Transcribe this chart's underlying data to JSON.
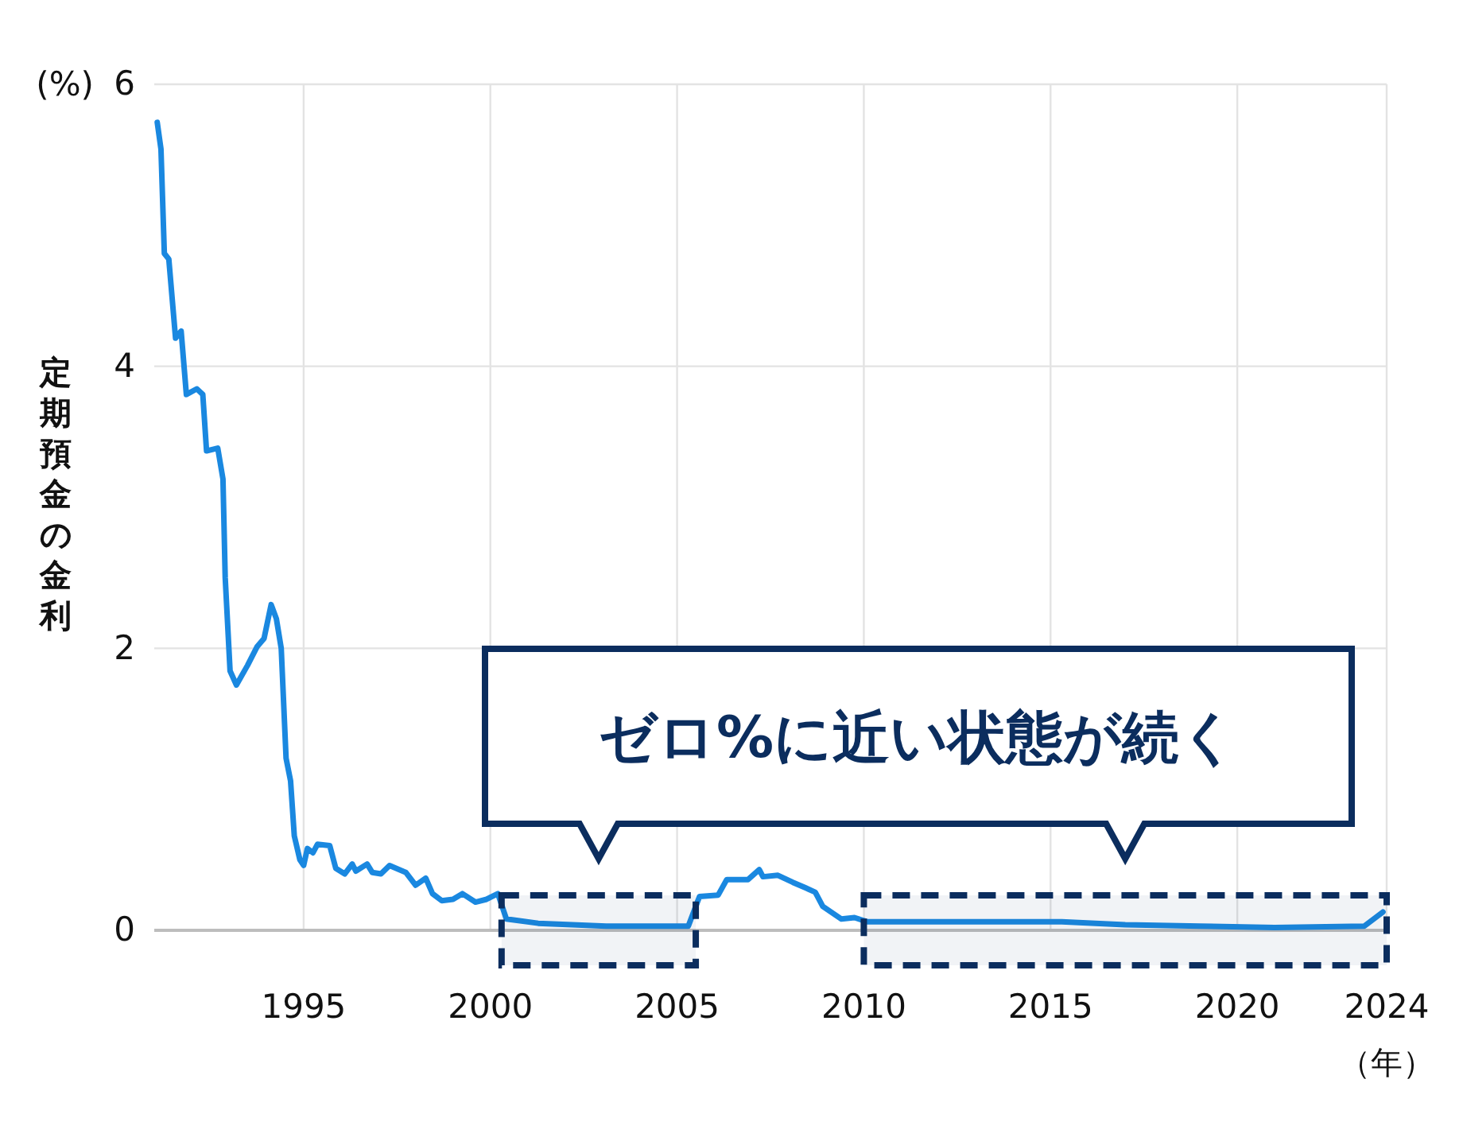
{
  "chart_data": {
    "type": "line",
    "ylabel": "定期預金の金利",
    "xlabel": "（年）",
    "annotations": [
      "ゼロ%に近い状態が続く",
      "(%)"
    ],
    "xlim": [
      1991,
      2024
    ],
    "xticks": [
      1995,
      2000,
      2005,
      2010,
      2015,
      2020,
      2024
    ],
    "ylim": [
      0,
      6
    ],
    "yticks": [
      0,
      2,
      4,
      6
    ],
    "grid": true,
    "marker": "none",
    "line_style": "solid",
    "bands": [
      {
        "axis": "x",
        "from": 2000.3,
        "to": 2005.5,
        "color": "#0b2d5e"
      },
      {
        "axis": "x",
        "from": 2010,
        "to": 2024,
        "color": "#0b2d5e"
      }
    ],
    "series": [
      {
        "color": "#1a88e0",
        "x": [
          1991.08,
          1991.18,
          1991.27,
          1991.39,
          1991.57,
          1991.72,
          1991.86,
          1992.14,
          1992.3,
          1992.4,
          1992.7,
          1992.84,
          1992.9,
          1993.03,
          1993.2,
          1993.5,
          1993.75,
          1993.94,
          1994.13,
          1994.27,
          1994.4,
          1994.53,
          1994.65,
          1994.75,
          1994.9,
          1995.0,
          1995.1,
          1995.25,
          1995.37,
          1995.7,
          1995.86,
          1996.1,
          1996.3,
          1996.4,
          1996.7,
          1996.84,
          1997.07,
          1997.3,
          1997.74,
          1998.0,
          1998.27,
          1998.45,
          1998.7,
          1999.0,
          1999.25,
          1999.6,
          1999.9,
          2000.2,
          2000.43,
          2001.28,
          2003.1,
          2005.3,
          2005.6,
          2006.1,
          2006.33,
          2006.9,
          2007.2,
          2007.3,
          2007.7,
          2008.1,
          2008.45,
          2008.7,
          2008.9,
          2009.4,
          2009.75,
          2010.1,
          2012,
          2015.3,
          2017,
          2019,
          2021,
          2023.4,
          2023.9
        ],
        "values": [
          5.73,
          5.54,
          4.8,
          4.76,
          4.2,
          4.25,
          3.8,
          3.84,
          3.8,
          3.4,
          3.42,
          3.2,
          2.5,
          1.84,
          1.74,
          1.88,
          2.01,
          2.07,
          2.31,
          2.21,
          2.0,
          1.22,
          1.06,
          0.67,
          0.5,
          0.46,
          0.58,
          0.55,
          0.61,
          0.6,
          0.44,
          0.4,
          0.47,
          0.42,
          0.47,
          0.41,
          0.4,
          0.46,
          0.41,
          0.32,
          0.37,
          0.26,
          0.21,
          0.22,
          0.26,
          0.2,
          0.22,
          0.26,
          0.08,
          0.05,
          0.03,
          0.03,
          0.24,
          0.25,
          0.36,
          0.36,
          0.43,
          0.38,
          0.39,
          0.34,
          0.3,
          0.27,
          0.17,
          0.08,
          0.09,
          0.06,
          0.06,
          0.06,
          0.04,
          0.03,
          0.02,
          0.03,
          0.13
        ]
      }
    ]
  }
}
